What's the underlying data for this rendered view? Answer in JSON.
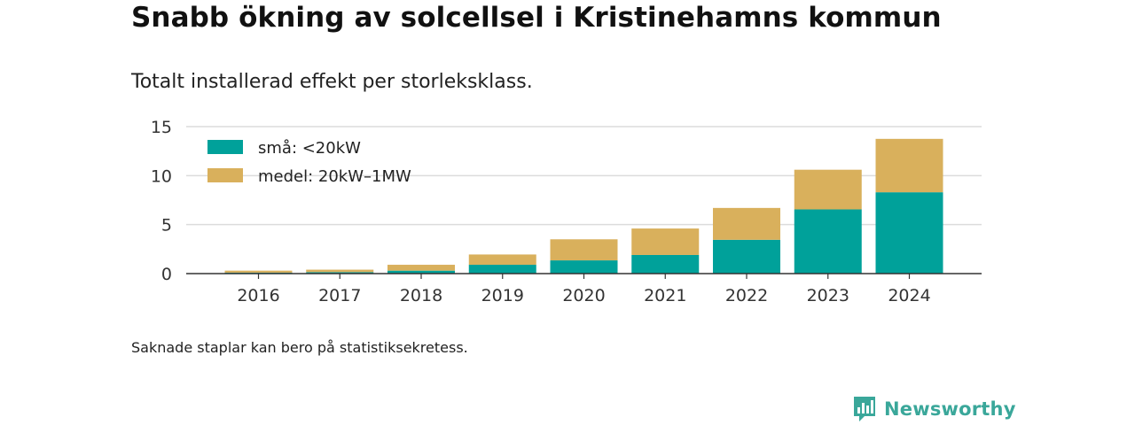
{
  "title": "Snabb ökning av solcellsel i Kristinehamns kommun",
  "subtitle": "Totalt installerad effekt per storleksklass.",
  "footnote": "Saknade staplar kan bero på statistiksekretess.",
  "brand": {
    "name": "Newsworthy",
    "color": "#3aa79a",
    "icon": "newsworthy-logo-icon"
  },
  "chart_data": {
    "type": "bar",
    "stacked": true,
    "title": "",
    "xlabel": "",
    "ylabel": "",
    "categories": [
      "2016",
      "2017",
      "2018",
      "2019",
      "2020",
      "2021",
      "2022",
      "2023",
      "2024"
    ],
    "series": [
      {
        "name": "små: <20kW",
        "color": "#00a19a",
        "values": [
          0.1,
          0.15,
          0.3,
          0.9,
          1.35,
          1.9,
          3.45,
          6.55,
          8.3
        ]
      },
      {
        "name": "medel: 20kW–1MW",
        "color": "#d9b05c",
        "values": [
          0.2,
          0.25,
          0.6,
          1.05,
          2.15,
          2.7,
          3.25,
          4.05,
          5.45
        ]
      }
    ],
    "ylim": [
      0,
      15
    ],
    "yticks": [
      0,
      5,
      10,
      15
    ],
    "grid": true,
    "legend": "top-left"
  }
}
